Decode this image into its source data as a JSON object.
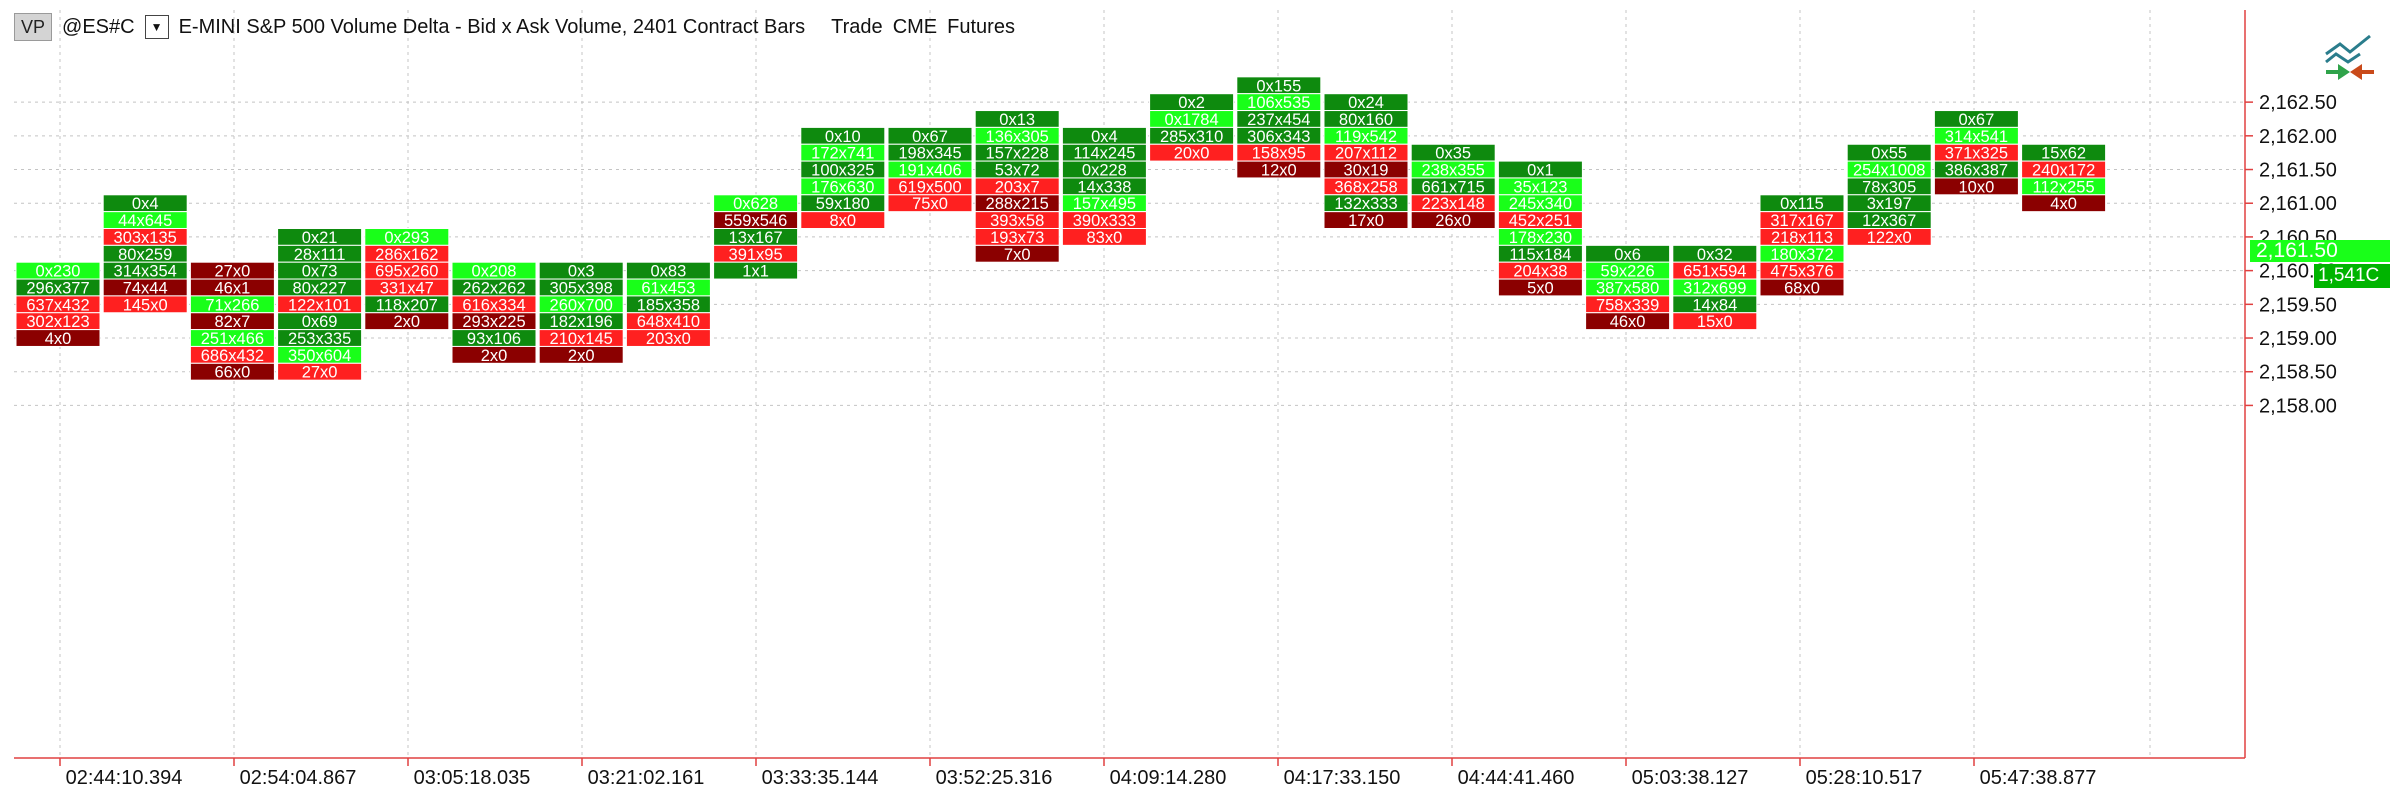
{
  "header": {
    "vp_label": "VP",
    "symbol": "@ES#C",
    "description": "E-MINI S&P 500  Volume Delta - Bid x Ask Volume, 2401 Contract Bars",
    "data_type": "Trade",
    "exchange": "CME",
    "asset_class": "Futures"
  },
  "icons": {
    "trend": "trend-reversal-icon",
    "dropdown": "chevron-down-icon"
  },
  "colors": {
    "dark_green": "#0e8a0e",
    "bright_green": "#19ff19",
    "red": "#ff2020",
    "dark_red": "#8b0000",
    "axis": "#e04040",
    "grid": "#c4c4c4",
    "price_label": "#19ff19",
    "volume_label": "#00b400"
  },
  "last_price": {
    "price": "2,161.50",
    "volume": "1,541C"
  },
  "chart_data": {
    "type": "table",
    "y_ticks": [
      "2,158.00",
      "2,158.50",
      "2,159.00",
      "2,159.50",
      "2,160.00",
      "2,160.50",
      "2,161.00",
      "2,161.50",
      "2,162.00",
      "2,162.50"
    ],
    "ylim": [
      2157.875,
      2163.125
    ],
    "x_ticks": [
      "02:44:10.394",
      "02:54:04.867",
      "03:05:18.035",
      "03:21:02.161",
      "03:33:35.144",
      "03:52:25.316",
      "04:09:14.280",
      "04:17:33.150",
      "04:44:41.460",
      "05:03:38.127",
      "05:28:10.517",
      "05:47:38.877"
    ],
    "color_codes": {
      "DG": "dark green",
      "G": "bright green",
      "R": "red",
      "DR": "dark red"
    },
    "bars": [
      {
        "top": 2160.0,
        "cells": [
          [
            "0x230",
            "G"
          ],
          [
            "296x377",
            "DG"
          ],
          [
            "637x432",
            "R"
          ],
          [
            "302x123",
            "R"
          ],
          [
            "4x0",
            "DR"
          ]
        ]
      },
      {
        "top": 2161.0,
        "cells": [
          [
            "0x4",
            "DG"
          ],
          [
            "44x645",
            "G"
          ],
          [
            "303x135",
            "R"
          ],
          [
            "80x259",
            "DG"
          ],
          [
            "314x354",
            "DG"
          ],
          [
            "74x44",
            "DR"
          ],
          [
            "145x0",
            "R"
          ]
        ]
      },
      {
        "top": 2160.0,
        "cells": [
          [
            "27x0",
            "DR"
          ],
          [
            "46x1",
            "DR"
          ],
          [
            "71x266",
            "G"
          ],
          [
            "82x7",
            "DR"
          ],
          [
            "251x466",
            "G"
          ],
          [
            "686x432",
            "R"
          ],
          [
            "66x0",
            "DR"
          ]
        ]
      },
      {
        "top": 2160.5,
        "cells": [
          [
            "0x21",
            "DG"
          ],
          [
            "28x111",
            "DG"
          ],
          [
            "0x73",
            "DG"
          ],
          [
            "80x227",
            "DG"
          ],
          [
            "122x101",
            "R"
          ],
          [
            "0x69",
            "DG"
          ],
          [
            "253x335",
            "DG"
          ],
          [
            "350x604",
            "G"
          ],
          [
            "27x0",
            "R"
          ]
        ]
      },
      {
        "top": 2160.5,
        "cells": [
          [
            "0x293",
            "G"
          ],
          [
            "286x162",
            "R"
          ],
          [
            "695x260",
            "R"
          ],
          [
            "331x47",
            "R"
          ],
          [
            "118x207",
            "DG"
          ],
          [
            "2x0",
            "DR"
          ]
        ]
      },
      {
        "top": 2160.0,
        "cells": [
          [
            "0x208",
            "G"
          ],
          [
            "262x262",
            "DG"
          ],
          [
            "616x334",
            "R"
          ],
          [
            "293x225",
            "DR"
          ],
          [
            "93x106",
            "DG"
          ],
          [
            "2x0",
            "DR"
          ]
        ]
      },
      {
        "top": 2160.0,
        "cells": [
          [
            "0x3",
            "DG"
          ],
          [
            "305x398",
            "DG"
          ],
          [
            "260x700",
            "G"
          ],
          [
            "182x196",
            "DG"
          ],
          [
            "210x145",
            "R"
          ],
          [
            "2x0",
            "DR"
          ]
        ]
      },
      {
        "top": 2160.0,
        "cells": [
          [
            "0x83",
            "DG"
          ],
          [
            "61x453",
            "G"
          ],
          [
            "185x358",
            "DG"
          ],
          [
            "648x410",
            "R"
          ],
          [
            "203x0",
            "R"
          ]
        ]
      },
      {
        "top": 2161.0,
        "cells": [
          [
            "0x628",
            "G"
          ],
          [
            "559x546",
            "DR"
          ],
          [
            "13x167",
            "DG"
          ],
          [
            "391x95",
            "R"
          ],
          [
            "1x1",
            "DG"
          ]
        ]
      },
      {
        "top": 2162.0,
        "cells": [
          [
            "0x10",
            "DG"
          ],
          [
            "172x741",
            "G"
          ],
          [
            "100x325",
            "DG"
          ],
          [
            "176x630",
            "G"
          ],
          [
            "59x180",
            "DG"
          ],
          [
            "8x0",
            "R"
          ]
        ]
      },
      {
        "top": 2162.0,
        "cells": [
          [
            "0x67",
            "DG"
          ],
          [
            "198x345",
            "DG"
          ],
          [
            "191x406",
            "G"
          ],
          [
            "619x500",
            "R"
          ],
          [
            "75x0",
            "R"
          ]
        ]
      },
      {
        "top": 2162.25,
        "cells": [
          [
            "0x13",
            "DG"
          ],
          [
            "136x305",
            "G"
          ],
          [
            "157x228",
            "DG"
          ],
          [
            "53x72",
            "DG"
          ],
          [
            "203x7",
            "R"
          ],
          [
            "288x215",
            "DR"
          ],
          [
            "393x58",
            "R"
          ],
          [
            "193x73",
            "R"
          ],
          [
            "7x0",
            "DR"
          ]
        ]
      },
      {
        "top": 2162.0,
        "cells": [
          [
            "0x4",
            "DG"
          ],
          [
            "114x245",
            "DG"
          ],
          [
            "0x228",
            "DG"
          ],
          [
            "14x338",
            "DG"
          ],
          [
            "157x495",
            "G"
          ],
          [
            "390x333",
            "R"
          ],
          [
            "83x0",
            "R"
          ]
        ]
      },
      {
        "top": 2162.5,
        "cells": [
          [
            "0x2",
            "DG"
          ],
          [
            "0x1784",
            "G"
          ],
          [
            "285x310",
            "DG"
          ],
          [
            "20x0",
            "R"
          ]
        ]
      },
      {
        "top": 2162.75,
        "cells": [
          [
            "0x155",
            "DG"
          ],
          [
            "106x535",
            "G"
          ],
          [
            "237x454",
            "DG"
          ],
          [
            "306x343",
            "DG"
          ],
          [
            "158x95",
            "R"
          ],
          [
            "12x0",
            "DR"
          ]
        ]
      },
      {
        "top": 2162.5,
        "cells": [
          [
            "0x24",
            "DG"
          ],
          [
            "80x160",
            "DG"
          ],
          [
            "119x542",
            "G"
          ],
          [
            "207x112",
            "R"
          ],
          [
            "30x19",
            "DR"
          ],
          [
            "368x258",
            "R"
          ],
          [
            "132x333",
            "DG"
          ],
          [
            "17x0",
            "DR"
          ]
        ]
      },
      {
        "top": 2161.75,
        "cells": [
          [
            "0x35",
            "DG"
          ],
          [
            "238x355",
            "G"
          ],
          [
            "661x715",
            "DG"
          ],
          [
            "223x148",
            "R"
          ],
          [
            "26x0",
            "DR"
          ]
        ]
      },
      {
        "top": 2161.5,
        "cells": [
          [
            "0x1",
            "DG"
          ],
          [
            "35x123",
            "G"
          ],
          [
            "245x340",
            "G"
          ],
          [
            "452x251",
            "R"
          ],
          [
            "178x230",
            "G"
          ],
          [
            "115x184",
            "DG"
          ],
          [
            "204x38",
            "R"
          ],
          [
            "5x0",
            "DR"
          ]
        ]
      },
      {
        "top": 2160.25,
        "cells": [
          [
            "0x6",
            "DG"
          ],
          [
            "59x226",
            "G"
          ],
          [
            "387x580",
            "G"
          ],
          [
            "758x339",
            "R"
          ],
          [
            "46x0",
            "DR"
          ]
        ]
      },
      {
        "top": 2160.25,
        "cells": [
          [
            "0x32",
            "DG"
          ],
          [
            "651x594",
            "R"
          ],
          [
            "312x699",
            "G"
          ],
          [
            "14x84",
            "DG"
          ],
          [
            "15x0",
            "R"
          ]
        ]
      },
      {
        "top": 2161.0,
        "cells": [
          [
            "0x115",
            "DG"
          ],
          [
            "317x167",
            "R"
          ],
          [
            "218x113",
            "R"
          ],
          [
            "180x372",
            "G"
          ],
          [
            "475x376",
            "R"
          ],
          [
            "68x0",
            "DR"
          ]
        ]
      },
      {
        "top": 2161.75,
        "cells": [
          [
            "0x55",
            "DG"
          ],
          [
            "254x1008",
            "G"
          ],
          [
            "78x305",
            "DG"
          ],
          [
            "3x197",
            "DG"
          ],
          [
            "12x367",
            "DG"
          ],
          [
            "122x0",
            "R"
          ]
        ]
      },
      {
        "top": 2162.25,
        "cells": [
          [
            "0x67",
            "DG"
          ],
          [
            "314x541",
            "G"
          ],
          [
            "371x325",
            "R"
          ],
          [
            "386x387",
            "DG"
          ],
          [
            "10x0",
            "DR"
          ]
        ]
      },
      {
        "top": 2161.75,
        "cells": [
          [
            "15x62",
            "DG"
          ],
          [
            "240x172",
            "R"
          ],
          [
            "112x255",
            "G"
          ],
          [
            "4x0",
            "DR"
          ]
        ]
      }
    ]
  }
}
